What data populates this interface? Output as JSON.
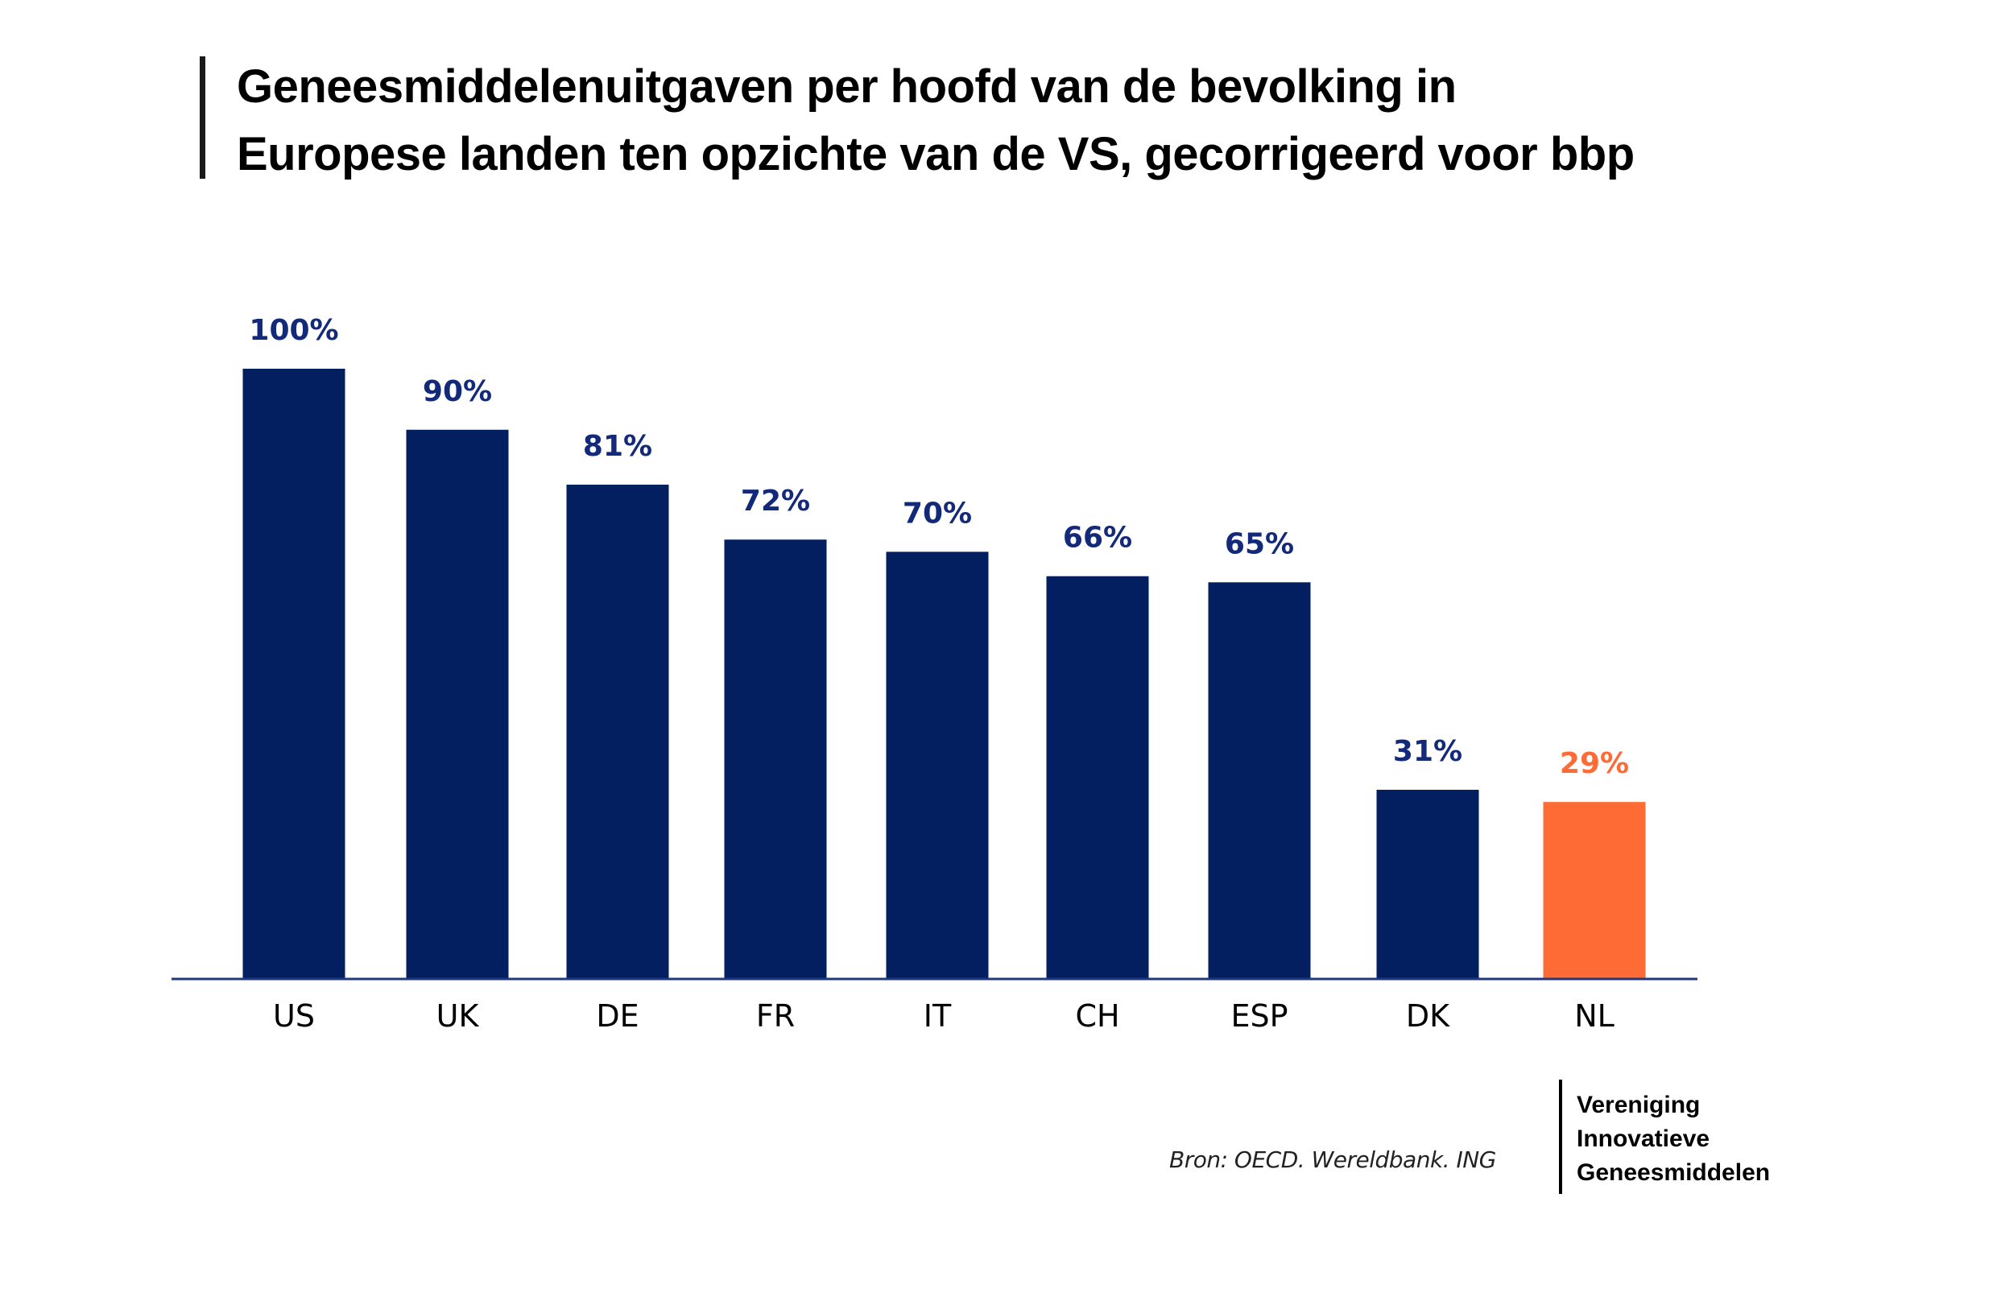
{
  "header": {
    "title_lines": [
      "Geneesmiddelenuitgaven per hoofd van de bevolking in",
      "Europese landen ten opzichte van de VS, gecorrigeerd voor bbp"
    ]
  },
  "chart_data": {
    "type": "bar",
    "title": "Geneesmiddelenuitgaven per hoofd van de bevolking in Europese landen ten opzichte van de VS, gecorrigeerd voor bbp",
    "xlabel": "",
    "ylabel": "",
    "ylim": [
      0,
      100
    ],
    "grid": false,
    "categories": [
      "US",
      "UK",
      "DE",
      "FR",
      "IT",
      "CH",
      "ESP",
      "DK",
      "NL"
    ],
    "values": [
      100,
      90,
      81,
      72,
      70,
      66,
      65,
      31,
      29
    ],
    "value_labels": [
      "100%",
      "90%",
      "81%",
      "72%",
      "70%",
      "66%",
      "65%",
      "31%",
      "29%"
    ],
    "highlight_category": "NL",
    "colors": {
      "default": "#031f60",
      "highlight": "#ff6b35",
      "default_label": "#13297a",
      "highlight_label": "#ff6b35",
      "axis": "#1f3a7a"
    }
  },
  "footer": {
    "source": "Bron: OECD. Wereldbank. ING",
    "logo_lines": [
      "Vereniging",
      "Innovatieve",
      "Geneesmiddelen"
    ]
  }
}
